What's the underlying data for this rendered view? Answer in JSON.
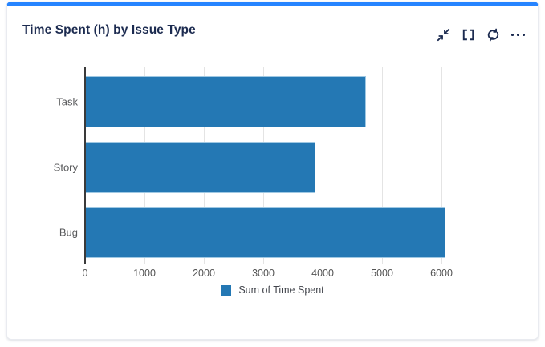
{
  "card": {
    "title": "Time Spent (h) by Issue Type",
    "accent_color": "#2684FF",
    "toolbar": {
      "icons": [
        "collapse-arrows-icon",
        "fullscreen-brackets-icon",
        "refresh-icon",
        "ellipsis-icon"
      ]
    }
  },
  "chart_data": {
    "type": "bar",
    "orientation": "horizontal",
    "title": "Time Spent (h) by Issue Type",
    "categories": [
      "Task",
      "Story",
      "Bug"
    ],
    "series": [
      {
        "name": "Sum of Time Spent",
        "values": [
          4730,
          3880,
          6070
        ]
      }
    ],
    "xlabel": "",
    "ylabel": "",
    "xlim": [
      0,
      6310
    ],
    "xticks": [
      0,
      1000,
      2000,
      3000,
      4000,
      5000,
      6000
    ],
    "grid": true,
    "legend_position": "bottom",
    "bar_color": "#2478b4",
    "bar_border_color": "#9fc8e3",
    "axis_line_color": "#3a3a3a",
    "gridline_color": "#e4e4e4"
  }
}
